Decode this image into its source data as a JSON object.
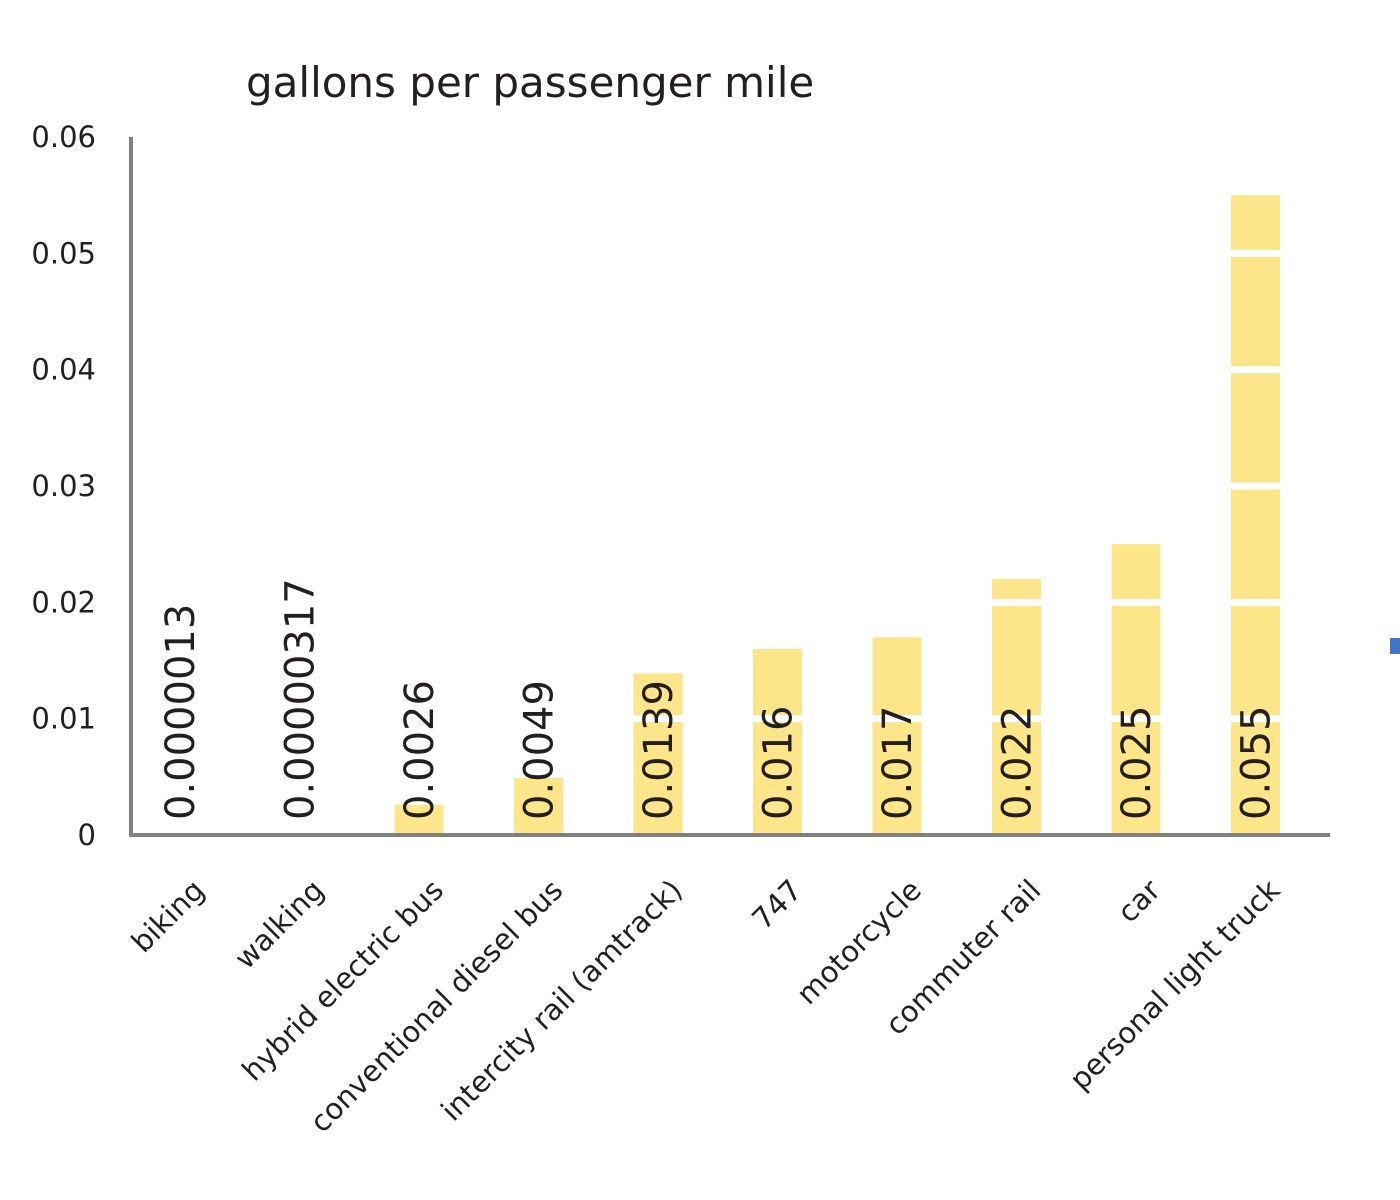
{
  "chart_data": {
    "type": "bar",
    "title": "gallons per passenger mile",
    "categories": [
      "biking",
      "walking",
      "hybrid electric bus",
      "conventional diesel bus",
      "intercity rail (amtrack)",
      "747",
      "motorcycle",
      "commuter rail",
      "car",
      "personal light truck"
    ],
    "values": [
      1.3e-06,
      3.17e-06,
      0.0026,
      0.0049,
      0.0139,
      0.016,
      0.017,
      0.022,
      0.025,
      0.055
    ],
    "data_labels": [
      "0.0000013",
      "0.00000317",
      "0.0026",
      "0.0049",
      "0.0139",
      "0.016",
      "0.017",
      "0.022",
      "0.025",
      "0.055"
    ],
    "y_ticks": [
      "0",
      "0.01",
      "0.02",
      "0.03",
      "0.04",
      "0.05",
      "0.06"
    ],
    "ylim": [
      0,
      0.06
    ],
    "grid": false,
    "bar_color": "#fde68a",
    "axis_color": "#808080",
    "marker_color": "#4472c4"
  }
}
